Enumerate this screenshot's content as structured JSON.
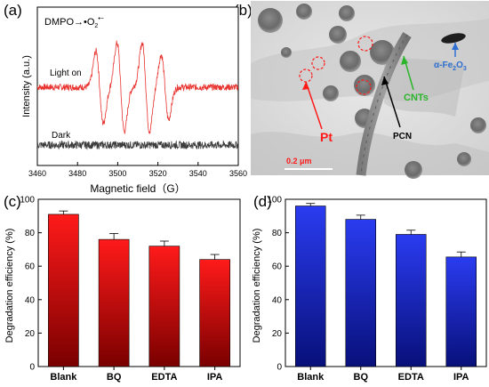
{
  "panels": {
    "a": {
      "label": "(a)"
    },
    "b": {
      "label": "(b)"
    },
    "c": {
      "label": "(c)"
    },
    "d": {
      "label": "(d)"
    }
  },
  "chart_data": [
    {
      "type": "line",
      "panel": "(a)",
      "title": "DMPO→•O2•−",
      "title_main": "DMPO→•O",
      "title_sub": "2",
      "title_sup": "•−",
      "xlabel": "Magnetic field（G）",
      "ylabel": "Intensity (a.u.)",
      "xlim": [
        3460,
        3560
      ],
      "xticks": [
        3460,
        3480,
        3500,
        3520,
        3540,
        3560
      ],
      "xtick_labels": [
        "3460",
        "3480",
        "3500",
        "3520",
        "3540",
        "3560"
      ],
      "yticks_shown": false,
      "series": [
        {
          "name": "Light on",
          "color": "#e8322e",
          "baseline_offset": 1.0,
          "peaks": [
            {
              "center": 3491,
              "amplitude": 0.45
            },
            {
              "center": 3501.5,
              "amplitude": 0.55
            },
            {
              "center": 3514,
              "amplitude": 0.55
            },
            {
              "center": 3523.5,
              "amplitude": 0.4
            }
          ]
        },
        {
          "name": "Dark",
          "color": "#3c3c3c",
          "baseline_offset": 0.0,
          "peaks": []
        }
      ]
    },
    {
      "type": "bar",
      "panel": "(c)",
      "categories": [
        "Blank",
        "BQ",
        "EDTA",
        "IPA"
      ],
      "values": [
        91,
        76,
        72,
        64
      ],
      "errors": [
        2,
        3.5,
        3,
        3
      ],
      "ylabel": "Degradation efficiency (%)",
      "xlabel": "",
      "ylim": [
        0,
        100
      ],
      "yticks": [
        0,
        20,
        40,
        60,
        80,
        100
      ],
      "ytick_labels": [
        "0",
        "20",
        "40",
        "60",
        "80",
        "100"
      ],
      "color_top": "#ff1a1a",
      "color_bottom": "#7a0000"
    },
    {
      "type": "bar",
      "panel": "(d)",
      "categories": [
        "Blank",
        "BQ",
        "EDTA",
        "IPA"
      ],
      "values": [
        96,
        88,
        79,
        65.5
      ],
      "errors": [
        1.5,
        2.5,
        2.5,
        3
      ],
      "ylabel": "Degradation efficiency (%)",
      "xlabel": "",
      "ylim": [
        0,
        100
      ],
      "yticks": [
        0,
        20,
        40,
        60,
        80,
        100
      ],
      "ytick_labels": [
        "0",
        "20",
        "40",
        "60",
        "80",
        "100"
      ],
      "color_top": "#2a3cf0",
      "color_bottom": "#08107a"
    }
  ],
  "micrograph": {
    "annotations": {
      "pt": {
        "label": "Pt",
        "color": "#ff1a1a"
      },
      "pcn": {
        "label": "PCN",
        "color": "#000000"
      },
      "cnts": {
        "label": "CNTs",
        "color": "#2bb52b"
      },
      "fe2o3": {
        "main": "α-Fe",
        "sub1": "2",
        "mid": "O",
        "sub2": "3",
        "color": "#2f6fd0"
      }
    },
    "scale_bar": "0.2 μm"
  }
}
